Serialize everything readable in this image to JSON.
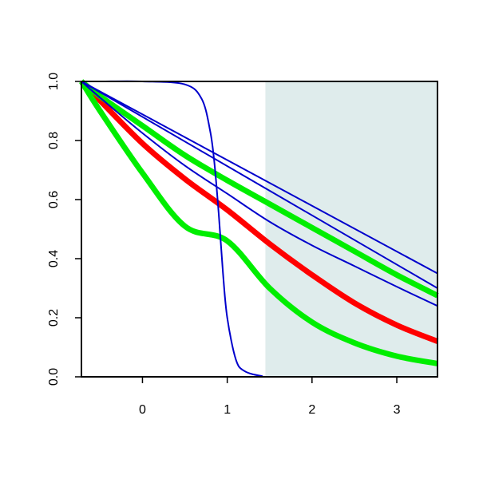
{
  "chart_data": {
    "type": "line",
    "title": "",
    "xlabel": "",
    "ylabel": "",
    "xlim": [
      -0.72,
      3.48
    ],
    "ylim": [
      0.0,
      1.0
    ],
    "x_ticks": [
      "0",
      "1",
      "2",
      "3"
    ],
    "x_tick_values": [
      0,
      1,
      2,
      3
    ],
    "y_ticks": [
      "0.0",
      "0.2",
      "0.4",
      "0.6",
      "0.8",
      "1.0"
    ],
    "y_tick_values": [
      0.0,
      0.2,
      0.4,
      0.6,
      0.8,
      1.0
    ],
    "grid": false,
    "legend": "none",
    "shaded_region": {
      "x_start": 1.45,
      "x_end": 3.48,
      "color": "#dfecec"
    },
    "series": [
      {
        "color": "#ff0000",
        "width": "thick",
        "x": [
          -0.72,
          -0.5,
          0,
          0.5,
          1.0,
          1.5,
          2.0,
          2.5,
          3.0,
          3.48
        ],
        "y": [
          1.0,
          0.935,
          0.79,
          0.67,
          0.565,
          0.45,
          0.345,
          0.25,
          0.175,
          0.12
        ]
      },
      {
        "color": "#00ee00",
        "width": "thick",
        "x": [
          -0.72,
          -0.5,
          0,
          0.5,
          1.0,
          1.5,
          2.0,
          2.5,
          3.0,
          3.48
        ],
        "y": [
          1.0,
          0.9,
          0.69,
          0.51,
          0.46,
          0.3,
          0.185,
          0.115,
          0.07,
          0.045
        ]
      },
      {
        "color": "#00ee00",
        "width": "thick",
        "x": [
          -0.72,
          -0.5,
          0,
          0.5,
          1.0,
          1.5,
          2.0,
          2.5,
          3.0,
          3.48
        ],
        "y": [
          1.0,
          0.95,
          0.85,
          0.75,
          0.665,
          0.585,
          0.505,
          0.425,
          0.345,
          0.275
        ]
      },
      {
        "color": "#0000cc",
        "width": "thin",
        "x": [
          -0.72,
          -0.5,
          0,
          0.5,
          0.7,
          0.8,
          0.85,
          0.9,
          0.95,
          1.0,
          1.1,
          1.2,
          1.4,
          1.6,
          3.48
        ],
        "y": [
          1.0,
          1.0,
          1.0,
          0.99,
          0.94,
          0.83,
          0.72,
          0.55,
          0.35,
          0.2,
          0.06,
          0.02,
          0.003,
          0.0,
          0.0
        ]
      },
      {
        "color": "#0000cc",
        "width": "thin",
        "x": [
          -0.72,
          -0.5,
          0,
          0.5,
          1.0,
          1.5,
          2.0,
          2.5,
          3.0,
          3.48
        ],
        "y": [
          1.0,
          0.945,
          0.825,
          0.715,
          0.62,
          0.525,
          0.445,
          0.375,
          0.305,
          0.24
        ]
      },
      {
        "color": "#0000cc",
        "width": "thin",
        "x": [
          -0.72,
          3.48
        ],
        "y": [
          1.0,
          0.3
        ]
      },
      {
        "color": "#0000cc",
        "width": "thin",
        "x": [
          -0.72,
          3.48
        ],
        "y": [
          1.0,
          0.35
        ]
      }
    ]
  }
}
